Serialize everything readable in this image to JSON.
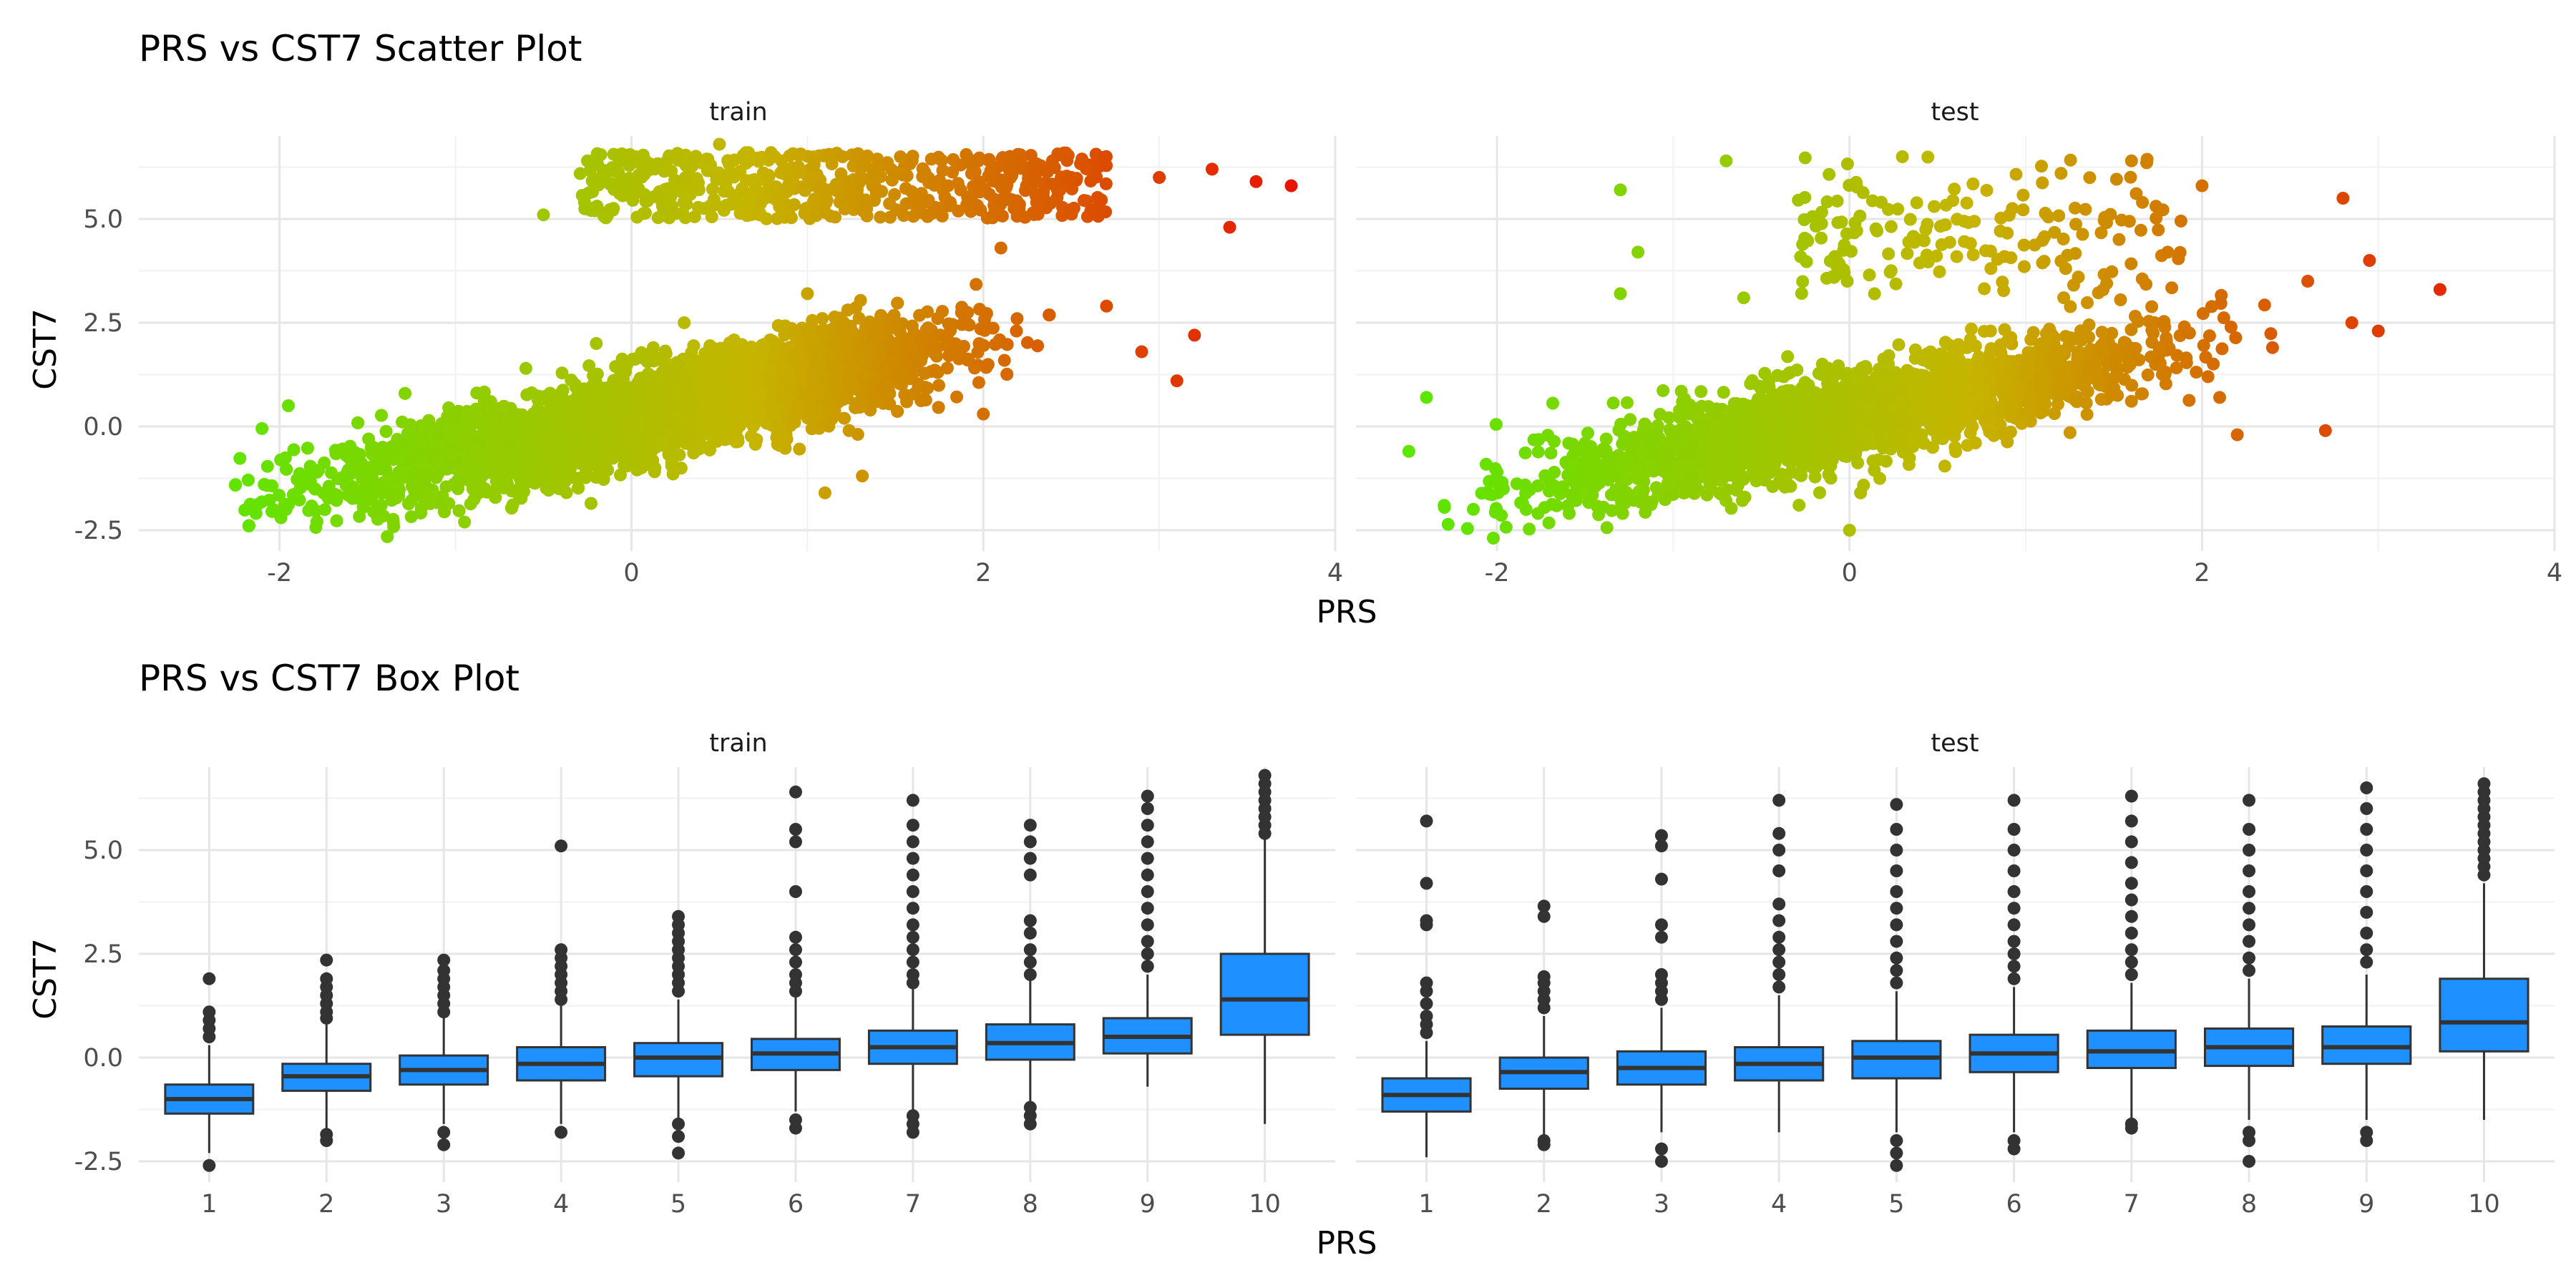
{
  "chart_data": [
    {
      "type": "scatter",
      "title": "PRS vs CST7 Scatter Plot",
      "xlabel": "PRS",
      "ylabel": "CST7",
      "facets": [
        "train",
        "test"
      ],
      "xlim": [
        -2.8,
        4.0
      ],
      "ylim": [
        -3.0,
        7.0
      ],
      "xticks": [
        -2,
        0,
        2,
        4
      ],
      "xtick_labels": [
        "-2",
        "0",
        "2",
        "4"
      ],
      "yticks": [
        -2.5,
        0.0,
        2.5,
        5.0
      ],
      "ytick_labels": [
        "-2.5",
        "0.0",
        "2.5",
        "5.0"
      ],
      "grid": true,
      "color_gradient": {
        "by": "PRS",
        "low": "#5ce600",
        "mid": "#c6b400",
        "high": "#e81200"
      },
      "trend": {
        "slope": 1.0,
        "intercept": 0.2
      },
      "series": [
        {
          "facet": "train",
          "sample_points": [
            [
              -2.25,
              -1.4
            ],
            [
              -2.1,
              -0.05
            ],
            [
              -1.95,
              0.5
            ],
            [
              -1.8,
              -1.5
            ],
            [
              -1.5,
              -1.2
            ],
            [
              -1.2,
              -0.8
            ],
            [
              -1.0,
              0.2
            ],
            [
              -0.8,
              0.6
            ],
            [
              -0.6,
              1.4
            ],
            [
              -0.5,
              5.1
            ],
            [
              -0.3,
              0.3
            ],
            [
              -0.2,
              2.0
            ],
            [
              0.0,
              0.0
            ],
            [
              0.2,
              1.0
            ],
            [
              0.3,
              2.5
            ],
            [
              -0.25,
              6.4
            ],
            [
              0.5,
              6.8
            ],
            [
              0.5,
              0.9
            ],
            [
              0.8,
              1.1
            ],
            [
              1.0,
              0.8
            ],
            [
              1.0,
              3.2
            ],
            [
              1.1,
              -1.6
            ],
            [
              1.2,
              6.5
            ],
            [
              1.5,
              2.0
            ],
            [
              1.6,
              1.7
            ],
            [
              1.8,
              5.8
            ],
            [
              2.0,
              0.3
            ],
            [
              2.1,
              4.3
            ],
            [
              2.3,
              5.9
            ],
            [
              2.5,
              6.0
            ],
            [
              2.7,
              2.9
            ],
            [
              2.9,
              1.8
            ],
            [
              3.0,
              6.0
            ],
            [
              3.1,
              1.1
            ],
            [
              3.2,
              2.2
            ],
            [
              3.3,
              6.2
            ],
            [
              3.4,
              4.8
            ],
            [
              3.55,
              5.9
            ],
            [
              3.75,
              5.8
            ]
          ]
        },
        {
          "facet": "test",
          "sample_points": [
            [
              -2.5,
              -0.6
            ],
            [
              -2.4,
              0.7
            ],
            [
              -2.3,
              -1.9
            ],
            [
              -2.0,
              -1.1
            ],
            [
              -1.5,
              -0.4
            ],
            [
              -1.3,
              5.7
            ],
            [
              -1.2,
              4.2
            ],
            [
              -1.3,
              3.2
            ],
            [
              -0.7,
              6.4
            ],
            [
              -1.0,
              -0.2
            ],
            [
              -0.5,
              0.9
            ],
            [
              -0.6,
              3.1
            ],
            [
              -0.2,
              0.6
            ],
            [
              0.0,
              0.2
            ],
            [
              0.0,
              -2.5
            ],
            [
              0.3,
              6.5
            ],
            [
              0.5,
              1.0
            ],
            [
              0.8,
              2.3
            ],
            [
              1.0,
              1.2
            ],
            [
              1.2,
              6.1
            ],
            [
              1.3,
              1.8
            ],
            [
              1.5,
              0.8
            ],
            [
              1.6,
              6.4
            ],
            [
              1.9,
              2.4
            ],
            [
              2.0,
              5.8
            ],
            [
              2.1,
              0.7
            ],
            [
              2.2,
              -0.2
            ],
            [
              2.4,
              1.9
            ],
            [
              2.6,
              3.5
            ],
            [
              2.7,
              -0.1
            ],
            [
              2.85,
              2.5
            ],
            [
              2.8,
              5.5
            ],
            [
              2.95,
              4.0
            ],
            [
              3.0,
              2.3
            ],
            [
              3.35,
              3.3
            ]
          ]
        }
      ]
    },
    {
      "type": "box",
      "title": "PRS vs CST7 Box Plot",
      "xlabel": "PRS",
      "ylabel": "CST7",
      "facets": [
        "train",
        "test"
      ],
      "categories": [
        "1",
        "2",
        "3",
        "4",
        "5",
        "6",
        "7",
        "8",
        "9",
        "10"
      ],
      "ylim": [
        -3.0,
        7.0
      ],
      "yticks": [
        -2.5,
        0.0,
        2.5,
        5.0
      ],
      "ytick_labels": [
        "-2.5",
        "0.0",
        "2.5",
        "5.0"
      ],
      "grid": true,
      "box_color": "#1e90ff",
      "series": [
        {
          "facet": "train",
          "boxes": [
            {
              "whisker_low": -2.3,
              "q1": -1.35,
              "median": -1.0,
              "q3": -0.65,
              "whisker_high": 0.3,
              "outliers": [
                -2.6,
                0.5,
                0.7,
                0.9,
                1.1,
                1.9
              ]
            },
            {
              "whisker_low": -1.7,
              "q1": -0.8,
              "median": -0.45,
              "q3": -0.15,
              "whisker_high": 0.8,
              "outliers": [
                -2.0,
                -1.85,
                0.95,
                1.1,
                1.3,
                1.5,
                1.7,
                1.9,
                2.35
              ]
            },
            {
              "whisker_low": -1.6,
              "q1": -0.65,
              "median": -0.3,
              "q3": 0.05,
              "whisker_high": 0.95,
              "outliers": [
                -2.1,
                -1.8,
                1.1,
                1.3,
                1.5,
                1.7,
                1.9,
                2.1,
                2.35
              ]
            },
            {
              "whisker_low": -1.6,
              "q1": -0.55,
              "median": -0.15,
              "q3": 0.25,
              "whisker_high": 1.3,
              "outliers": [
                -1.8,
                1.4,
                1.6,
                1.8,
                2.0,
                2.2,
                2.4,
                2.6,
                5.1
              ]
            },
            {
              "whisker_low": -1.5,
              "q1": -0.45,
              "median": 0.0,
              "q3": 0.35,
              "whisker_high": 1.4,
              "outliers": [
                -2.3,
                -1.9,
                -1.6,
                1.6,
                1.8,
                2.0,
                2.2,
                2.4,
                2.6,
                2.8,
                3.0,
                3.2,
                3.4
              ]
            },
            {
              "whisker_low": -1.3,
              "q1": -0.3,
              "median": 0.1,
              "q3": 0.45,
              "whisker_high": 1.5,
              "outliers": [
                -1.7,
                -1.5,
                1.6,
                1.8,
                2.0,
                2.3,
                2.6,
                2.9,
                4.0,
                5.2,
                5.5,
                6.4
              ]
            },
            {
              "whisker_low": -1.3,
              "q1": -0.15,
              "median": 0.25,
              "q3": 0.65,
              "whisker_high": 1.7,
              "outliers": [
                -1.8,
                -1.6,
                -1.4,
                1.8,
                2.0,
                2.3,
                2.6,
                2.9,
                3.2,
                3.6,
                4.0,
                4.4,
                4.8,
                5.2,
                5.6,
                6.2
              ]
            },
            {
              "whisker_low": -1.2,
              "q1": -0.05,
              "median": 0.35,
              "q3": 0.8,
              "whisker_high": 1.9,
              "outliers": [
                -1.6,
                -1.4,
                -1.2,
                2.0,
                2.3,
                2.6,
                3.0,
                3.3,
                4.4,
                4.8,
                5.2,
                5.6
              ]
            },
            {
              "whisker_low": -0.7,
              "q1": 0.1,
              "median": 0.5,
              "q3": 0.95,
              "whisker_high": 2.0,
              "outliers": [
                2.2,
                2.5,
                2.8,
                3.2,
                3.6,
                4.0,
                4.4,
                4.8,
                5.2,
                5.6,
                6.0,
                6.3
              ]
            },
            {
              "whisker_low": -1.6,
              "q1": 0.55,
              "median": 1.4,
              "q3": 2.5,
              "whisker_high": 5.3,
              "outliers": [
                5.4,
                5.6,
                5.8,
                6.0,
                6.2,
                6.4,
                6.6,
                6.8
              ]
            }
          ]
        },
        {
          "facet": "test",
          "boxes": [
            {
              "whisker_low": -2.4,
              "q1": -1.3,
              "median": -0.9,
              "q3": -0.5,
              "whisker_high": 0.4,
              "outliers": [
                0.6,
                0.8,
                1.0,
                1.3,
                1.6,
                1.8,
                3.2,
                3.3,
                4.2,
                5.7
              ]
            },
            {
              "whisker_low": -1.9,
              "q1": -0.75,
              "median": -0.35,
              "q3": 0.0,
              "whisker_high": 1.0,
              "outliers": [
                -2.1,
                -2.0,
                1.2,
                1.4,
                1.6,
                1.8,
                1.95,
                3.4,
                3.65
              ]
            },
            {
              "whisker_low": -1.8,
              "q1": -0.65,
              "median": -0.25,
              "q3": 0.15,
              "whisker_high": 1.2,
              "outliers": [
                -2.5,
                -2.2,
                1.4,
                1.6,
                1.8,
                2.0,
                2.9,
                3.2,
                4.3,
                5.1,
                5.35
              ]
            },
            {
              "whisker_low": -1.8,
              "q1": -0.55,
              "median": -0.15,
              "q3": 0.25,
              "whisker_high": 1.5,
              "outliers": [
                1.7,
                2.0,
                2.3,
                2.6,
                2.9,
                3.3,
                3.7,
                4.5,
                5.0,
                5.4,
                6.2
              ]
            },
            {
              "whisker_low": -1.8,
              "q1": -0.5,
              "median": 0.0,
              "q3": 0.4,
              "whisker_high": 1.6,
              "outliers": [
                -2.6,
                -2.3,
                -2.0,
                1.8,
                2.1,
                2.4,
                2.8,
                3.2,
                3.6,
                4.0,
                4.5,
                5.0,
                5.5,
                6.1
              ]
            },
            {
              "whisker_low": -1.8,
              "q1": -0.35,
              "median": 0.1,
              "q3": 0.55,
              "whisker_high": 1.7,
              "outliers": [
                -2.2,
                -2.0,
                1.9,
                2.2,
                2.5,
                2.8,
                3.2,
                3.6,
                4.0,
                4.5,
                5.0,
                5.5,
                6.2
              ]
            },
            {
              "whisker_low": -1.5,
              "q1": -0.25,
              "median": 0.15,
              "q3": 0.65,
              "whisker_high": 1.8,
              "outliers": [
                -1.7,
                -1.6,
                2.0,
                2.3,
                2.6,
                3.0,
                3.4,
                3.8,
                4.2,
                4.7,
                5.2,
                5.7,
                6.3
              ]
            },
            {
              "whisker_low": -1.5,
              "q1": -0.2,
              "median": 0.25,
              "q3": 0.7,
              "whisker_high": 1.9,
              "outliers": [
                -2.5,
                -2.0,
                -1.8,
                2.1,
                2.4,
                2.8,
                3.2,
                3.6,
                4.0,
                4.5,
                5.0,
                5.5,
                6.2
              ]
            },
            {
              "whisker_low": -1.5,
              "q1": -0.15,
              "median": 0.25,
              "q3": 0.75,
              "whisker_high": 2.0,
              "outliers": [
                -2.0,
                -1.8,
                2.3,
                2.6,
                3.0,
                3.5,
                4.0,
                4.5,
                5.0,
                5.5,
                6.0,
                6.5
              ]
            },
            {
              "whisker_low": -1.5,
              "q1": 0.15,
              "median": 0.85,
              "q3": 1.9,
              "whisker_high": 4.2,
              "outliers": [
                4.4,
                4.6,
                4.8,
                5.0,
                5.2,
                5.4,
                5.6,
                5.8,
                6.0,
                6.2,
                6.4,
                6.6
              ]
            }
          ]
        }
      ]
    }
  ]
}
